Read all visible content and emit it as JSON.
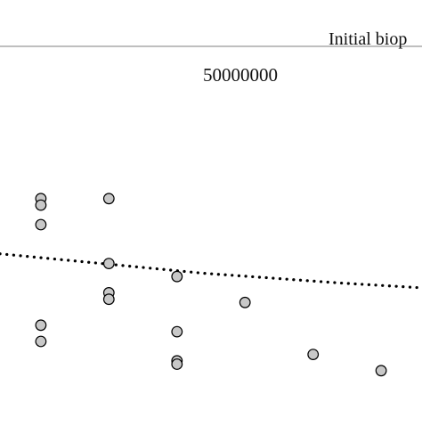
{
  "header": {
    "label": "Initial biop"
  },
  "chart_data": {
    "type": "scatter",
    "title": "50000000",
    "xlabel": "",
    "ylabel": "",
    "grid": false,
    "xlim": [
      0,
      6.2
    ],
    "ylim": [
      0,
      1
    ],
    "points": [
      {
        "x": 0.6,
        "y": 0.69
      },
      {
        "x": 0.6,
        "y": 0.67
      },
      {
        "x": 0.6,
        "y": 0.61
      },
      {
        "x": 0.6,
        "y": 0.3
      },
      {
        "x": 0.6,
        "y": 0.25
      },
      {
        "x": 1.6,
        "y": 0.69
      },
      {
        "x": 1.6,
        "y": 0.49
      },
      {
        "x": 1.6,
        "y": 0.4
      },
      {
        "x": 1.6,
        "y": 0.38
      },
      {
        "x": 2.6,
        "y": 0.45
      },
      {
        "x": 2.6,
        "y": 0.28
      },
      {
        "x": 2.6,
        "y": 0.19
      },
      {
        "x": 2.6,
        "y": 0.18
      },
      {
        "x": 3.6,
        "y": 0.37
      },
      {
        "x": 4.6,
        "y": 0.21
      },
      {
        "x": 5.6,
        "y": 0.16
      }
    ],
    "trendline": {
      "style": "dotted",
      "x": [
        0,
        1,
        2,
        3,
        4,
        5,
        6.2
      ],
      "y": [
        0.52,
        0.5,
        0.48,
        0.46,
        0.445,
        0.43,
        0.415
      ]
    },
    "colors": {
      "marker_fill": "#c8c8c8",
      "marker_stroke": "#000000",
      "trendline": "#000000",
      "divider": "#999999"
    }
  }
}
